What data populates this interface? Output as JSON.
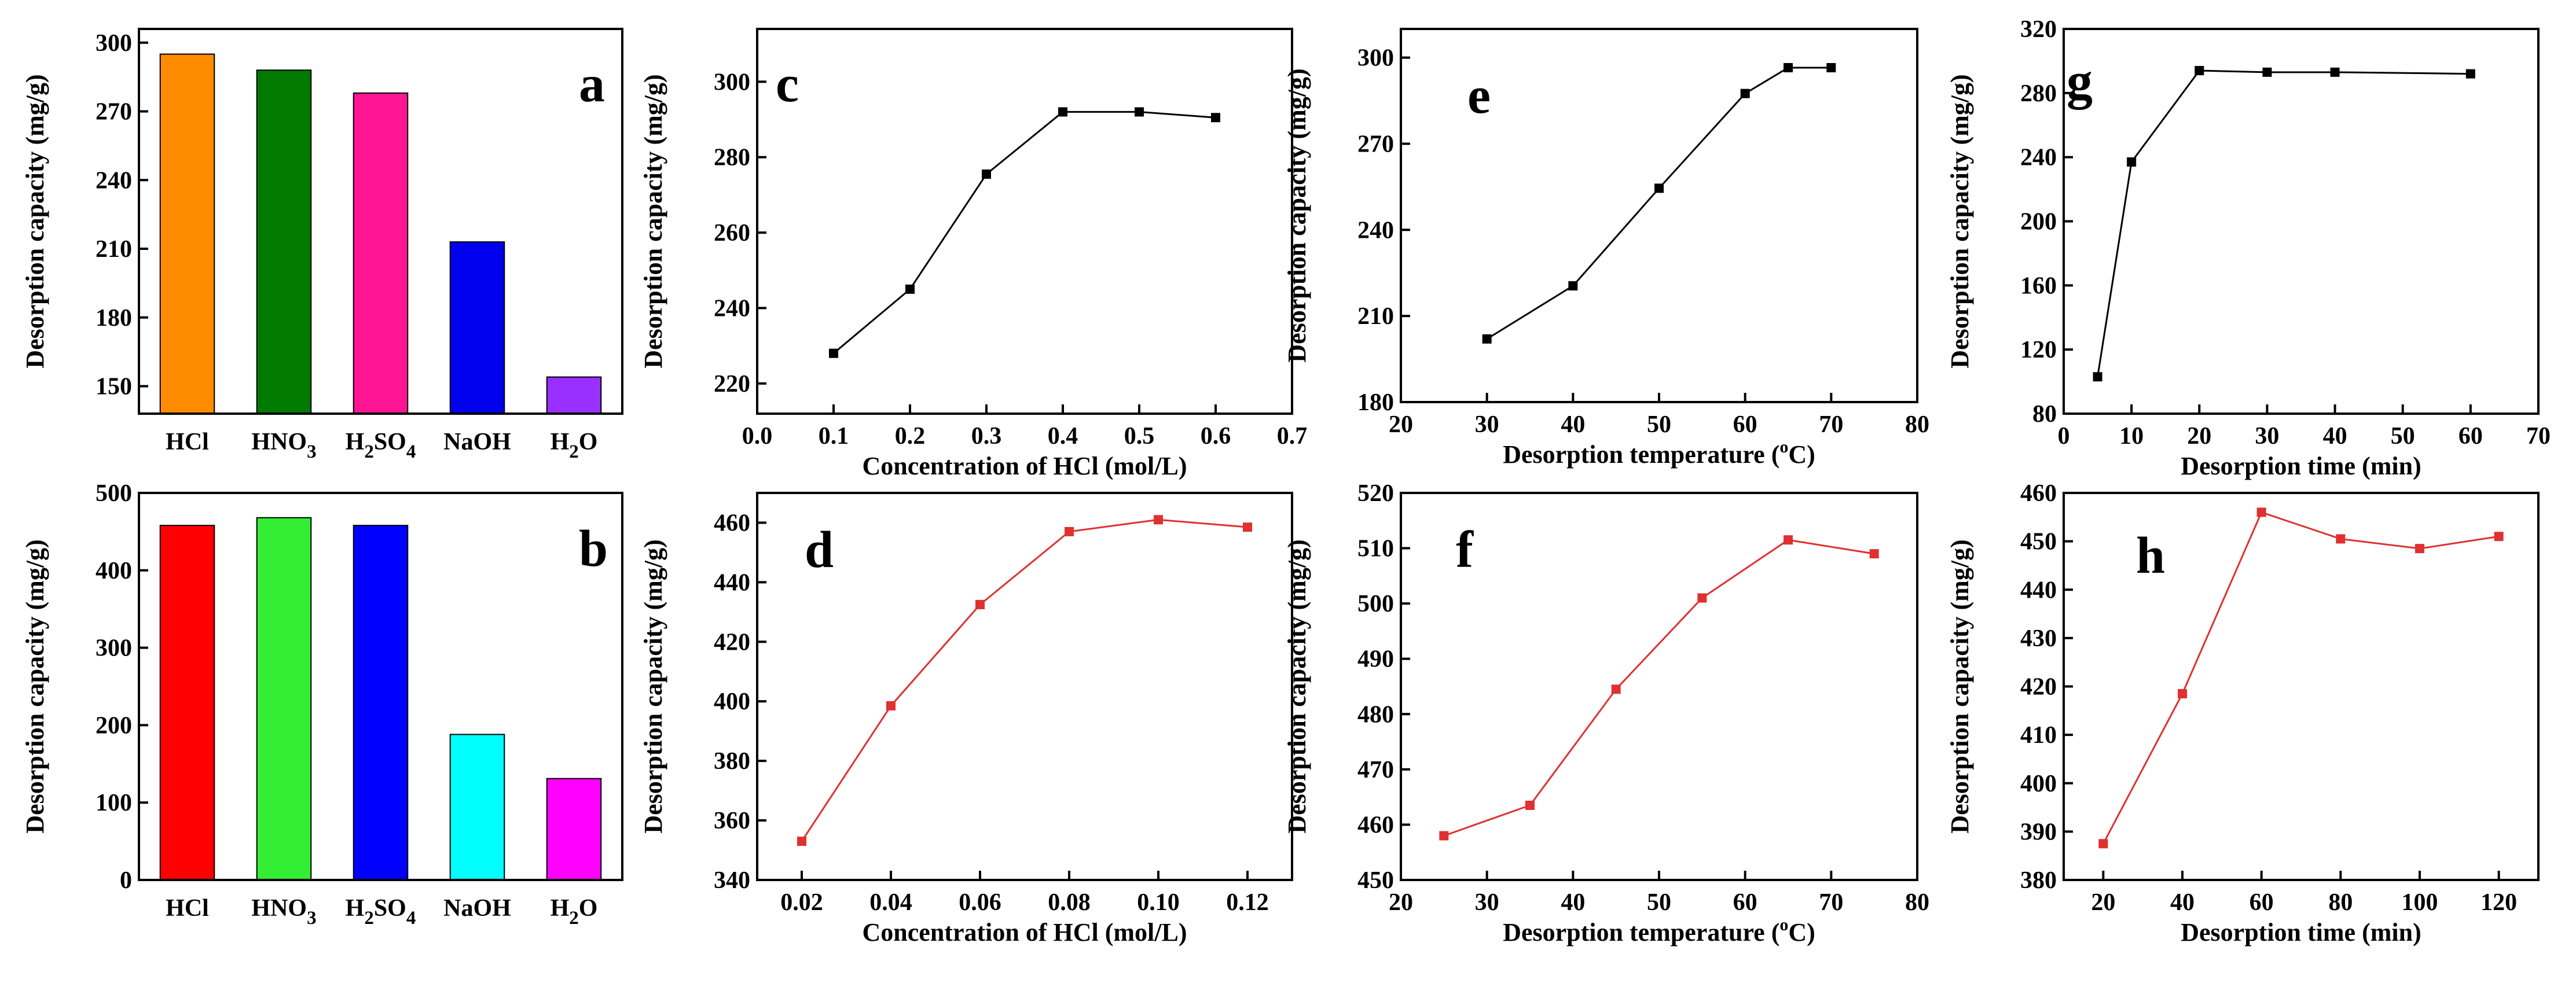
{
  "chart_data": [
    {
      "id": "a",
      "panel_label": "a",
      "type": "bar",
      "categories": [
        "HCl",
        "HNO3",
        "H2SO4",
        "NaOH",
        "H2O"
      ],
      "category_parts": [
        [
          {
            "t": "HCl",
            "sub": false
          }
        ],
        [
          {
            "t": "HNO",
            "sub": false
          },
          {
            "t": "3",
            "sub": true
          }
        ],
        [
          {
            "t": "H",
            "sub": false
          },
          {
            "t": "2",
            "sub": true
          },
          {
            "t": "SO",
            "sub": false
          },
          {
            "t": "4",
            "sub": true
          }
        ],
        [
          {
            "t": "NaOH",
            "sub": false
          }
        ],
        [
          {
            "t": "H",
            "sub": false
          },
          {
            "t": "2",
            "sub": true
          },
          {
            "t": "O",
            "sub": false
          }
        ]
      ],
      "values": [
        295,
        288,
        278,
        213,
        154
      ],
      "colors": [
        "#ff8c00",
        "#007a00",
        "#ff1493",
        "#0000ee",
        "#9a30ff"
      ],
      "ylabel": "Desorption capacity (mg/g)",
      "xlabel": "",
      "ylim": [
        138,
        306
      ],
      "yticks": [
        150,
        180,
        210,
        240,
        270,
        300
      ]
    },
    {
      "id": "b",
      "panel_label": "b",
      "type": "bar",
      "categories": [
        "HCl",
        "HNO3",
        "H2SO4",
        "NaOH",
        "H2O"
      ],
      "category_parts": [
        [
          {
            "t": "HCl",
            "sub": false
          }
        ],
        [
          {
            "t": "HNO",
            "sub": false
          },
          {
            "t": "3",
            "sub": true
          }
        ],
        [
          {
            "t": "H",
            "sub": false
          },
          {
            "t": "2",
            "sub": true
          },
          {
            "t": "SO",
            "sub": false
          },
          {
            "t": "4",
            "sub": true
          }
        ],
        [
          {
            "t": "NaOH",
            "sub": false
          }
        ],
        [
          {
            "t": "H",
            "sub": false
          },
          {
            "t": "2",
            "sub": true
          },
          {
            "t": "O",
            "sub": false
          }
        ]
      ],
      "values": [
        458,
        468,
        458,
        188,
        131
      ],
      "colors": [
        "#ff0000",
        "#33ee33",
        "#0000ff",
        "#00ffff",
        "#ff00ff"
      ],
      "ylabel": "Desorption capacity (mg/g)",
      "xlabel": "",
      "ylim": [
        0,
        500
      ],
      "yticks": [
        0,
        100,
        200,
        300,
        400,
        500
      ]
    },
    {
      "id": "c",
      "panel_label": "c",
      "type": "line",
      "series": [
        {
          "name": "HCl concentration",
          "color": "#000000",
          "x": [
            0.1,
            0.2,
            0.3,
            0.4,
            0.5,
            0.6
          ],
          "y": [
            228,
            245,
            275.5,
            292,
            292,
            290.5
          ]
        }
      ],
      "xlabel": "Concentration of HCl (mol/L)",
      "xlabel_parts": [
        {
          "t": "Concentration of HCl (mol/L)",
          "sup": false
        }
      ],
      "ylabel": "Desorption capacity (mg/g)",
      "xlim": [
        0.0,
        0.7
      ],
      "ylim": [
        212,
        314
      ],
      "xticks": [
        0.0,
        0.1,
        0.2,
        0.3,
        0.4,
        0.5,
        0.6,
        0.7
      ],
      "yticks": [
        220,
        240,
        260,
        280,
        300
      ],
      "xdecimals": 1
    },
    {
      "id": "d",
      "panel_label": "d",
      "type": "line",
      "series": [
        {
          "name": "HCl concentration",
          "color": "#e03030",
          "x": [
            0.02,
            0.04,
            0.06,
            0.08,
            0.1,
            0.12
          ],
          "y": [
            353,
            398.5,
            432.5,
            457,
            461,
            458.5
          ]
        }
      ],
      "xlabel": "Concentration of HCl (mol/L)",
      "xlabel_parts": [
        {
          "t": "Concentration of HCl (mol/L)",
          "sup": false
        }
      ],
      "ylabel": "Desorption capacity (mg/g)",
      "xlim": [
        0.01,
        0.13
      ],
      "ylim": [
        340,
        470
      ],
      "xticks": [
        0.02,
        0.04,
        0.06,
        0.08,
        0.1,
        0.12
      ],
      "yticks": [
        340,
        360,
        380,
        400,
        420,
        440,
        460
      ],
      "xdecimals": 2
    },
    {
      "id": "e",
      "panel_label": "e",
      "type": "line",
      "series": [
        {
          "name": "Desorption temperature",
          "color": "#000000",
          "x": [
            30,
            40,
            50,
            60,
            65,
            70
          ],
          "y": [
            202,
            220.5,
            254.5,
            287.5,
            296.5,
            296.5
          ]
        }
      ],
      "xlabel": "Desorption temperature (oC)",
      "xlabel_parts": [
        {
          "t": "Desorption temperature (",
          "sup": false
        },
        {
          "t": "o",
          "sup": true
        },
        {
          "t": "C)",
          "sup": false
        }
      ],
      "ylabel": "Desorption capacity (mg/g)",
      "xlim": [
        20,
        80
      ],
      "ylim": [
        180,
        310
      ],
      "xticks": [
        20,
        30,
        40,
        50,
        60,
        70,
        80
      ],
      "yticks": [
        180,
        210,
        240,
        270,
        300
      ],
      "xdecimals": 0
    },
    {
      "id": "f",
      "panel_label": "f",
      "type": "line",
      "series": [
        {
          "name": "Desorption temperature",
          "color": "#e03030",
          "x": [
            25,
            35,
            45,
            55,
            65,
            75
          ],
          "y": [
            458,
            463.5,
            484.5,
            501,
            511.5,
            509
          ]
        }
      ],
      "xlabel": "Desorption temperature (oC)",
      "xlabel_parts": [
        {
          "t": "Desorption temperature (",
          "sup": false
        },
        {
          "t": "o",
          "sup": true
        },
        {
          "t": "C)",
          "sup": false
        }
      ],
      "ylabel": "Desorption capacity (mg/g)",
      "xlim": [
        20,
        80
      ],
      "ylim": [
        450,
        520
      ],
      "xticks": [
        20,
        30,
        40,
        50,
        60,
        70,
        80
      ],
      "yticks": [
        450,
        460,
        470,
        480,
        490,
        500,
        510,
        520
      ],
      "xdecimals": 0
    },
    {
      "id": "g",
      "panel_label": "g",
      "type": "line",
      "series": [
        {
          "name": "Desorption time",
          "color": "#000000",
          "x": [
            5,
            10,
            20,
            30,
            40,
            60
          ],
          "y": [
            103,
            237,
            294,
            293,
            293,
            292
          ]
        }
      ],
      "xlabel": "Desorption time (min)",
      "xlabel_parts": [
        {
          "t": "Desorption time (min)",
          "sup": false
        }
      ],
      "ylabel": "Desorption capacity (mg/g)",
      "xlim": [
        0,
        70
      ],
      "ylim": [
        80,
        320
      ],
      "xticks": [
        0,
        10,
        20,
        30,
        40,
        50,
        60,
        70
      ],
      "yticks": [
        80,
        120,
        160,
        200,
        240,
        280,
        320
      ],
      "xdecimals": 0
    },
    {
      "id": "h",
      "panel_label": "h",
      "type": "line",
      "series": [
        {
          "name": "Desorption time",
          "color": "#e03030",
          "x": [
            20,
            40,
            60,
            80,
            100,
            120
          ],
          "y": [
            387.5,
            418.5,
            456,
            450.5,
            448.5,
            451
          ]
        }
      ],
      "xlabel": "Desorption time (min)",
      "xlabel_parts": [
        {
          "t": "Desorption time (min)",
          "sup": false
        }
      ],
      "ylabel": "Desorption capacity (mg/g)",
      "xlim": [
        10,
        130
      ],
      "ylim": [
        380,
        460
      ],
      "xticks": [
        20,
        40,
        60,
        80,
        100,
        120
      ],
      "yticks": [
        380,
        390,
        400,
        410,
        420,
        430,
        440,
        450,
        460
      ],
      "xdecimals": 0
    }
  ]
}
